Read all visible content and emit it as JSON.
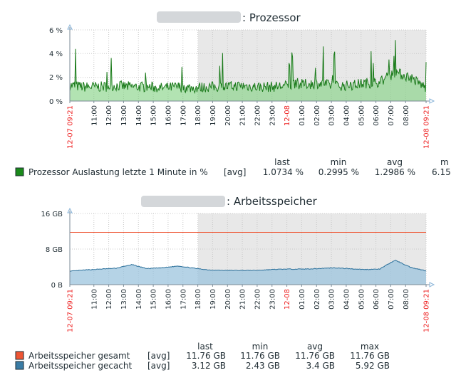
{
  "colors": {
    "cpu_line": "#1a7a1a",
    "cpu_fill": "#7fd07f",
    "mem_total": "#ee5533",
    "mem_used": "#2a6f9a",
    "mem_used_fill": "#9cc4de",
    "night_bg": "#e8e8e8",
    "red_label": "#ee2222"
  },
  "cpu_graph": {
    "title_suffix": ": Prozessor",
    "y_ticks": [
      "6 %",
      "4 %",
      "2 %",
      "0 %"
    ],
    "x_ticks": [
      "12-07 09:21",
      "11:00",
      "12:00",
      "13:00",
      "14:00",
      "15:00",
      "16:00",
      "17:00",
      "18:00",
      "19:00",
      "20:00",
      "21:00",
      "22:00",
      "23:00",
      "12-08",
      "01:00",
      "02:00",
      "03:00",
      "04:00",
      "05:00",
      "06:00",
      "07:00",
      "08:00",
      "12-08 09:21"
    ],
    "legend_header": {
      "last": "last",
      "min": "min",
      "avg": "avg",
      "max": "m"
    },
    "legend": [
      {
        "name": "Prozessor Auslastung letzte 1 Minute in %",
        "func": "[avg]",
        "last": "1.0734 %",
        "min": "0.2995 %",
        "avg": "1.2986 %",
        "max": "6.15"
      }
    ]
  },
  "mem_graph": {
    "title_suffix": ": Arbeitsspeicher",
    "y_ticks": [
      "16 GB",
      "8 GB",
      "0 B"
    ],
    "x_ticks": [
      "12-07 09:21",
      "11:00",
      "12:00",
      "13:00",
      "14:00",
      "15:00",
      "16:00",
      "17:00",
      "18:00",
      "19:00",
      "20:00",
      "21:00",
      "22:00",
      "23:00",
      "12-08",
      "01:00",
      "02:00",
      "03:00",
      "04:00",
      "05:00",
      "06:00",
      "07:00",
      "08:00",
      "12-08 09:21"
    ],
    "legend_header": {
      "last": "last",
      "min": "min",
      "avg": "avg",
      "max": "max"
    },
    "legend": [
      {
        "name": "Arbeitsspeicher gesamt",
        "func": "[avg]",
        "last": "11.76 GB",
        "min": "11.76 GB",
        "avg": "11.76 GB",
        "max": "11.76 GB"
      },
      {
        "name": "Arbeitsspeicher gecacht",
        "func": "[avg]",
        "last": "3.12 GB",
        "min": "2.43 GB",
        "avg": "3.4 GB",
        "max": "5.92 GB"
      }
    ]
  },
  "chart_data": [
    {
      "type": "line",
      "title": ": Prozessor",
      "ylabel": "",
      "ylim": [
        0,
        6
      ],
      "x": [
        "12-07 09:21",
        "11:00",
        "12:00",
        "13:00",
        "14:00",
        "15:00",
        "16:00",
        "17:00",
        "18:00",
        "19:00",
        "20:00",
        "21:00",
        "22:00",
        "23:00",
        "12-08",
        "01:00",
        "02:00",
        "03:00",
        "04:00",
        "05:00",
        "06:00",
        "07:00",
        "08:00",
        "12-08 09:21"
      ],
      "series": [
        {
          "name": "Prozessor Auslastung letzte 1 Minute in %",
          "values": [
            1.3,
            1.2,
            1.2,
            1.3,
            1.2,
            1.2,
            1.1,
            1.2,
            1.1,
            1.2,
            1.2,
            1.3,
            1.2,
            1.2,
            1.3,
            1.4,
            1.5,
            1.3,
            1.3,
            1.5,
            1.6,
            2.4,
            2.0,
            1.1
          ]
        }
      ],
      "grid": true
    },
    {
      "type": "area",
      "title": ": Arbeitsspeicher",
      "ylabel": "",
      "ylim": [
        0,
        16
      ],
      "x": [
        "12-07 09:21",
        "11:00",
        "12:00",
        "13:00",
        "14:00",
        "15:00",
        "16:00",
        "17:00",
        "18:00",
        "19:00",
        "20:00",
        "21:00",
        "22:00",
        "23:00",
        "12-08",
        "01:00",
        "02:00",
        "03:00",
        "04:00",
        "05:00",
        "06:00",
        "07:00",
        "08:00",
        "12-08 09:21"
      ],
      "series": [
        {
          "name": "Arbeitsspeicher gesamt",
          "values": [
            11.76,
            11.76,
            11.76,
            11.76,
            11.76,
            11.76,
            11.76,
            11.76,
            11.76,
            11.76,
            11.76,
            11.76,
            11.76,
            11.76,
            11.76,
            11.76,
            11.76,
            11.76,
            11.76,
            11.76,
            11.76,
            11.76,
            11.76,
            11.76
          ]
        },
        {
          "name": "Arbeitsspeicher gecacht",
          "values": [
            3.0,
            3.3,
            3.5,
            3.7,
            4.5,
            3.6,
            3.8,
            4.2,
            3.7,
            3.3,
            3.2,
            3.2,
            3.2,
            3.4,
            3.5,
            3.5,
            3.6,
            3.8,
            3.6,
            3.4,
            3.5,
            5.5,
            3.9,
            3.1
          ]
        }
      ],
      "grid": true
    }
  ]
}
